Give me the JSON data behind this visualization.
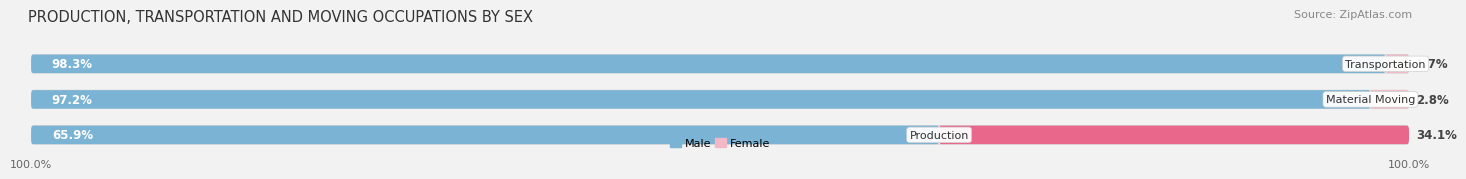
{
  "title": "PRODUCTION, TRANSPORTATION AND MOVING OCCUPATIONS BY SEX",
  "source": "Source: ZipAtlas.com",
  "categories": [
    "Transportation",
    "Material Moving",
    "Production"
  ],
  "male_pct": [
    98.3,
    97.2,
    65.9
  ],
  "female_pct": [
    1.7,
    2.8,
    34.1
  ],
  "male_color": "#7ab3d4",
  "female_color_light": "#f2b8c6",
  "female_color_strong": "#e8678a",
  "male_label_color": "#ffffff",
  "female_label_color": "#555555",
  "bar_height": 0.52,
  "background_color": "#f2f2f2",
  "bar_bg_color": "#e0e0e0",
  "legend_male_color": "#7ab3d4",
  "legend_female_color": "#f2b8c6",
  "title_fontsize": 10.5,
  "source_fontsize": 8,
  "label_fontsize": 8.5,
  "axis_label_fontsize": 8,
  "category_label_fontsize": 8
}
